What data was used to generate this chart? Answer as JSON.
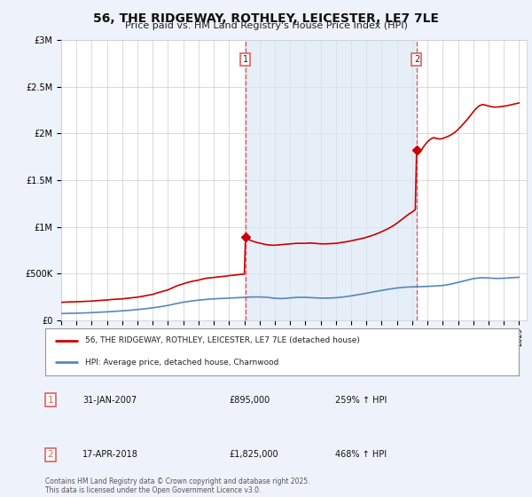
{
  "title": "56, THE RIDGEWAY, ROTHLEY, LEICESTER, LE7 7LE",
  "subtitle": "Price paid vs. HM Land Registry's House Price Index (HPI)",
  "background_color": "#eef2fa",
  "plot_bg_color": "#ffffff",
  "ylim": [
    0,
    3000000
  ],
  "yticks": [
    0,
    500000,
    1000000,
    1500000,
    2000000,
    2500000,
    3000000
  ],
  "x_start_year": 1995,
  "x_end_year": 2025,
  "vline1_year": 2007.08,
  "vline2_year": 2018.29,
  "vline_color": "#e06060",
  "shade_color": "#dce8f5",
  "red_line_color": "#cc0000",
  "blue_line_color": "#5588bb",
  "legend_text_red": "56, THE RIDGEWAY, ROTHLEY, LEICESTER, LE7 7LE (detached house)",
  "legend_text_blue": "HPI: Average price, detached house, Charnwood",
  "footer": "Contains HM Land Registry data © Crown copyright and database right 2025.\nThis data is licensed under the Open Government Licence v3.0.",
  "red_hpi_data": [
    [
      1995.0,
      195000
    ],
    [
      1995.2,
      197000
    ],
    [
      1995.5,
      199000
    ],
    [
      1995.8,
      200000
    ],
    [
      1996.0,
      201000
    ],
    [
      1996.3,
      203000
    ],
    [
      1996.6,
      205000
    ],
    [
      1997.0,
      208000
    ],
    [
      1997.3,
      212000
    ],
    [
      1997.6,
      216000
    ],
    [
      1998.0,
      220000
    ],
    [
      1998.3,
      225000
    ],
    [
      1998.6,
      228000
    ],
    [
      1999.0,
      232000
    ],
    [
      1999.3,
      238000
    ],
    [
      1999.6,
      243000
    ],
    [
      2000.0,
      250000
    ],
    [
      2000.3,
      258000
    ],
    [
      2000.6,
      268000
    ],
    [
      2001.0,
      280000
    ],
    [
      2001.3,
      296000
    ],
    [
      2001.6,
      310000
    ],
    [
      2002.0,
      328000
    ],
    [
      2002.3,
      350000
    ],
    [
      2002.6,
      372000
    ],
    [
      2003.0,
      392000
    ],
    [
      2003.3,
      408000
    ],
    [
      2003.6,
      420000
    ],
    [
      2004.0,
      432000
    ],
    [
      2004.3,
      445000
    ],
    [
      2004.6,
      455000
    ],
    [
      2005.0,
      460000
    ],
    [
      2005.2,
      465000
    ],
    [
      2005.4,
      468000
    ],
    [
      2005.6,
      472000
    ],
    [
      2005.8,
      475000
    ],
    [
      2006.0,
      480000
    ],
    [
      2006.2,
      483000
    ],
    [
      2006.4,
      487000
    ],
    [
      2006.6,
      490000
    ],
    [
      2006.8,
      494000
    ],
    [
      2007.0,
      497000
    ],
    [
      2007.08,
      895000
    ],
    [
      2007.2,
      875000
    ],
    [
      2007.4,
      858000
    ],
    [
      2007.6,
      845000
    ],
    [
      2007.8,
      835000
    ],
    [
      2008.0,
      828000
    ],
    [
      2008.2,
      820000
    ],
    [
      2008.4,
      812000
    ],
    [
      2008.6,
      808000
    ],
    [
      2008.8,
      805000
    ],
    [
      2009.0,
      805000
    ],
    [
      2009.2,
      808000
    ],
    [
      2009.4,
      812000
    ],
    [
      2009.6,
      815000
    ],
    [
      2009.8,
      818000
    ],
    [
      2010.0,
      820000
    ],
    [
      2010.2,
      822000
    ],
    [
      2010.4,
      825000
    ],
    [
      2010.6,
      825000
    ],
    [
      2010.8,
      825000
    ],
    [
      2011.0,
      825000
    ],
    [
      2011.2,
      828000
    ],
    [
      2011.4,
      828000
    ],
    [
      2011.6,
      825000
    ],
    [
      2011.8,
      822000
    ],
    [
      2012.0,
      820000
    ],
    [
      2012.2,
      820000
    ],
    [
      2012.4,
      820000
    ],
    [
      2012.6,
      822000
    ],
    [
      2012.8,
      823000
    ],
    [
      2013.0,
      825000
    ],
    [
      2013.2,
      830000
    ],
    [
      2013.4,
      835000
    ],
    [
      2013.6,
      840000
    ],
    [
      2013.8,
      845000
    ],
    [
      2014.0,
      852000
    ],
    [
      2014.2,
      858000
    ],
    [
      2014.4,
      865000
    ],
    [
      2014.6,
      872000
    ],
    [
      2014.8,
      880000
    ],
    [
      2015.0,
      890000
    ],
    [
      2015.2,
      900000
    ],
    [
      2015.4,
      910000
    ],
    [
      2015.6,
      922000
    ],
    [
      2015.8,
      935000
    ],
    [
      2016.0,
      950000
    ],
    [
      2016.2,
      965000
    ],
    [
      2016.4,
      980000
    ],
    [
      2016.6,
      998000
    ],
    [
      2016.8,
      1018000
    ],
    [
      2017.0,
      1040000
    ],
    [
      2017.2,
      1065000
    ],
    [
      2017.4,
      1090000
    ],
    [
      2017.6,
      1115000
    ],
    [
      2017.8,
      1140000
    ],
    [
      2018.0,
      1160000
    ],
    [
      2018.2,
      1185000
    ],
    [
      2018.29,
      1825000
    ],
    [
      2018.4,
      1780000
    ],
    [
      2018.6,
      1820000
    ],
    [
      2018.8,
      1870000
    ],
    [
      2019.0,
      1910000
    ],
    [
      2019.2,
      1938000
    ],
    [
      2019.4,
      1955000
    ],
    [
      2019.6,
      1945000
    ],
    [
      2019.8,
      1940000
    ],
    [
      2020.0,
      1945000
    ],
    [
      2020.2,
      1958000
    ],
    [
      2020.4,
      1972000
    ],
    [
      2020.6,
      1990000
    ],
    [
      2020.8,
      2012000
    ],
    [
      2021.0,
      2040000
    ],
    [
      2021.2,
      2075000
    ],
    [
      2021.4,
      2110000
    ],
    [
      2021.6,
      2148000
    ],
    [
      2021.8,
      2188000
    ],
    [
      2022.0,
      2230000
    ],
    [
      2022.2,
      2268000
    ],
    [
      2022.4,
      2295000
    ],
    [
      2022.6,
      2308000
    ],
    [
      2022.8,
      2302000
    ],
    [
      2023.0,
      2292000
    ],
    [
      2023.2,
      2285000
    ],
    [
      2023.4,
      2280000
    ],
    [
      2023.6,
      2282000
    ],
    [
      2023.8,
      2285000
    ],
    [
      2024.0,
      2290000
    ],
    [
      2024.2,
      2295000
    ],
    [
      2024.4,
      2302000
    ],
    [
      2024.6,
      2310000
    ],
    [
      2024.8,
      2318000
    ],
    [
      2025.0,
      2325000
    ]
  ],
  "blue_hpi_data": [
    [
      1995.0,
      75000
    ],
    [
      1995.5,
      77000
    ],
    [
      1996.0,
      79000
    ],
    [
      1996.5,
      81000
    ],
    [
      1997.0,
      85000
    ],
    [
      1997.5,
      89000
    ],
    [
      1998.0,
      93000
    ],
    [
      1998.5,
      98000
    ],
    [
      1999.0,
      104000
    ],
    [
      1999.5,
      110000
    ],
    [
      2000.0,
      118000
    ],
    [
      2000.5,
      126000
    ],
    [
      2001.0,
      136000
    ],
    [
      2001.5,
      148000
    ],
    [
      2002.0,
      162000
    ],
    [
      2002.5,
      180000
    ],
    [
      2003.0,
      196000
    ],
    [
      2003.5,
      208000
    ],
    [
      2004.0,
      218000
    ],
    [
      2004.5,
      226000
    ],
    [
      2005.0,
      232000
    ],
    [
      2005.5,
      236000
    ],
    [
      2006.0,
      240000
    ],
    [
      2006.5,
      244000
    ],
    [
      2007.0,
      248000
    ],
    [
      2007.5,
      252000
    ],
    [
      2008.0,
      252000
    ],
    [
      2008.5,
      248000
    ],
    [
      2009.0,
      238000
    ],
    [
      2009.5,
      235000
    ],
    [
      2010.0,
      242000
    ],
    [
      2010.5,
      248000
    ],
    [
      2011.0,
      248000
    ],
    [
      2011.5,
      244000
    ],
    [
      2012.0,
      240000
    ],
    [
      2012.5,
      240000
    ],
    [
      2013.0,
      244000
    ],
    [
      2013.5,
      252000
    ],
    [
      2014.0,
      264000
    ],
    [
      2014.5,
      278000
    ],
    [
      2015.0,
      292000
    ],
    [
      2015.5,
      308000
    ],
    [
      2016.0,
      322000
    ],
    [
      2016.5,
      336000
    ],
    [
      2017.0,
      348000
    ],
    [
      2017.5,
      356000
    ],
    [
      2018.0,
      360000
    ],
    [
      2018.5,
      362000
    ],
    [
      2019.0,
      365000
    ],
    [
      2019.5,
      370000
    ],
    [
      2020.0,
      375000
    ],
    [
      2020.5,
      388000
    ],
    [
      2021.0,
      408000
    ],
    [
      2021.5,
      428000
    ],
    [
      2022.0,
      448000
    ],
    [
      2022.5,
      458000
    ],
    [
      2023.0,
      455000
    ],
    [
      2023.5,
      450000
    ],
    [
      2024.0,
      452000
    ],
    [
      2024.5,
      458000
    ],
    [
      2025.0,
      462000
    ]
  ]
}
